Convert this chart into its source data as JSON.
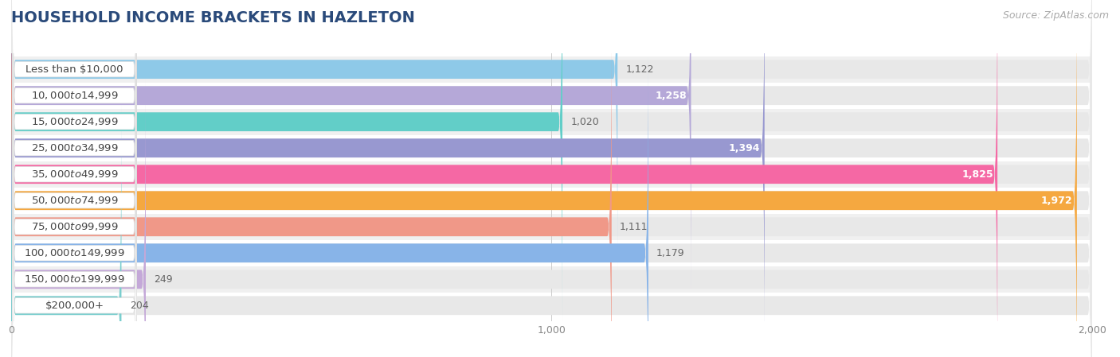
{
  "title": "HOUSEHOLD INCOME BRACKETS IN HAZLETON",
  "source": "Source: ZipAtlas.com",
  "categories": [
    "Less than $10,000",
    "$10,000 to $14,999",
    "$15,000 to $24,999",
    "$25,000 to $34,999",
    "$35,000 to $49,999",
    "$50,000 to $74,999",
    "$75,000 to $99,999",
    "$100,000 to $149,999",
    "$150,000 to $199,999",
    "$200,000+"
  ],
  "values": [
    1122,
    1258,
    1020,
    1394,
    1825,
    1972,
    1111,
    1179,
    249,
    204
  ],
  "bar_colors": [
    "#8ec9e8",
    "#b5a8d8",
    "#62cec8",
    "#9898d0",
    "#f568a4",
    "#f5a840",
    "#f09888",
    "#88b4e8",
    "#c4a8d8",
    "#7acece"
  ],
  "value_colors_inside": [
    false,
    true,
    false,
    true,
    true,
    true,
    false,
    false,
    false,
    false
  ],
  "xlim": [
    0,
    2000
  ],
  "background_color": "#ffffff",
  "row_bg_colors": [
    "#f0f0f0",
    "#ffffff"
  ],
  "bar_bg_color": "#e8e8e8",
  "title_fontsize": 14,
  "label_fontsize": 9.5,
  "value_fontsize": 9,
  "source_fontsize": 9,
  "title_color": "#2a4a7a",
  "label_text_color": "#444444",
  "value_text_dark": "#666666",
  "value_text_light": "#ffffff"
}
